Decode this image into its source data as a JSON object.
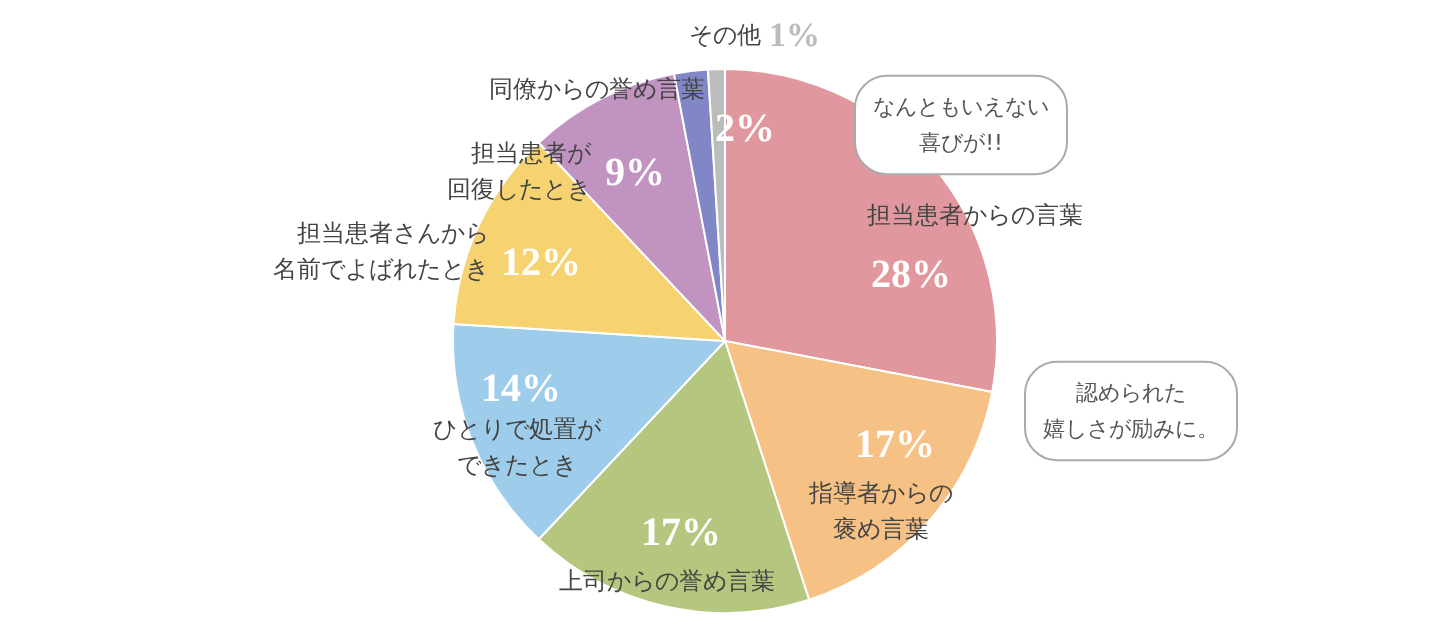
{
  "chart_data": {
    "type": "pie",
    "categories": [
      "担当患者からの言葉",
      "指導者からの褒め言葉",
      "上司からの誉め言葉",
      "ひとりで処置ができたとき",
      "担当患者さんから名前でよばれたとき",
      "担当患者が回復したとき",
      "同僚からの誉め言葉",
      "その他"
    ],
    "values": [
      28,
      17,
      17,
      14,
      12,
      9,
      2,
      1
    ],
    "value_labels": [
      "28%",
      "17%",
      "17%",
      "14%",
      "12%",
      "9%",
      "2%",
      "1%"
    ],
    "colors": [
      "#e0989e",
      "#f6c184",
      "#b5c77f",
      "#9ecdec",
      "#f6d271",
      "#c093c0",
      "#8086c6",
      "#bcbcbc"
    ],
    "annotations": [
      "なんともいえない喜びが!!",
      "認められた嬉しさが励みに。"
    ]
  }
}
